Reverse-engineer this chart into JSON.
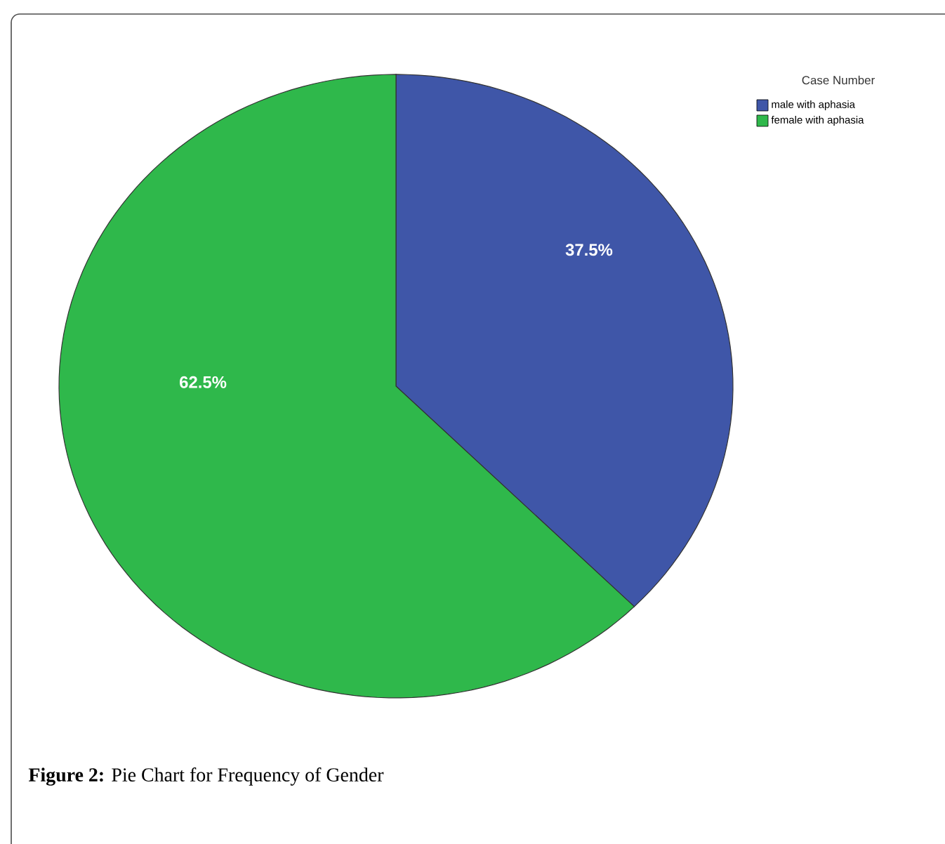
{
  "chart_data": {
    "type": "pie",
    "legend_title": "Case Number",
    "legend": "top right",
    "categories": [
      "male with aphasia",
      "female with aphasia"
    ],
    "values": [
      37.5,
      62.5
    ],
    "colors": [
      "#3f56a8",
      "#2fb84b"
    ],
    "value_labels": [
      "37.5%",
      "62.5%"
    ],
    "annotations": [
      "**Figure 2:** Pie Chart for Frequency of Gender"
    ]
  }
}
